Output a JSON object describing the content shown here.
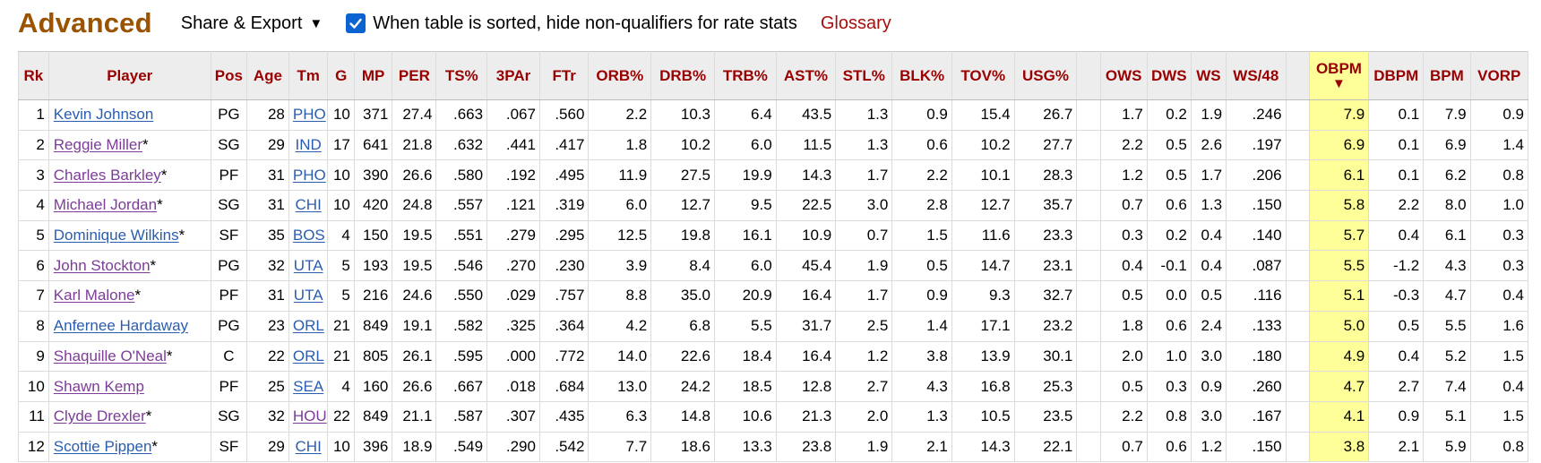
{
  "header": {
    "title": "Advanced",
    "share_export_label": "Share & Export",
    "hide_nonqualifiers_label": "When table is sorted, hide non-qualifiers for rate stats",
    "hide_nonqualifiers_checked": true,
    "glossary_label": "Glossary"
  },
  "colors": {
    "title": "#9a5300",
    "header_text": "#990000",
    "link": "#2a5db0",
    "visited_link": "#7d3c98",
    "sorted_highlight": "#ffff99",
    "checkbox": "#0a63d1"
  },
  "table": {
    "sorted_column": "OBPM",
    "sort_indicator": "▼",
    "columns": [
      "Rk",
      "Player",
      "Pos",
      "Age",
      "Tm",
      "G",
      "MP",
      "PER",
      "TS%",
      "3PAr",
      "FTr",
      "ORB%",
      "DRB%",
      "TRB%",
      "AST%",
      "STL%",
      "BLK%",
      "TOV%",
      "USG%",
      "",
      "OWS",
      "DWS",
      "WS",
      "WS/48",
      "",
      "OBPM",
      "DBPM",
      "BPM",
      "VORP"
    ],
    "rows": [
      {
        "rk": "1",
        "player": "Kevin Johnson",
        "hof": "",
        "player_visited": false,
        "pos": "PG",
        "age": "28",
        "tm": "PHO",
        "tm_visited": false,
        "g": "10",
        "mp": "371",
        "per": "27.4",
        "ts": ".663",
        "par3": ".067",
        "ftr": ".560",
        "orb": "2.2",
        "drb": "10.3",
        "trb": "6.4",
        "ast": "43.5",
        "stl": "1.3",
        "blk": "0.9",
        "tov": "15.4",
        "usg": "26.7",
        "ows": "1.7",
        "dws": "0.2",
        "ws": "1.9",
        "ws48": ".246",
        "obpm": "7.9",
        "dbpm": "0.1",
        "bpm": "7.9",
        "vorp": "0.9"
      },
      {
        "rk": "2",
        "player": "Reggie Miller",
        "hof": "*",
        "player_visited": true,
        "pos": "SG",
        "age": "29",
        "tm": "IND",
        "tm_visited": false,
        "g": "17",
        "mp": "641",
        "per": "21.8",
        "ts": ".632",
        "par3": ".441",
        "ftr": ".417",
        "orb": "1.8",
        "drb": "10.2",
        "trb": "6.0",
        "ast": "11.5",
        "stl": "1.3",
        "blk": "0.6",
        "tov": "10.2",
        "usg": "27.7",
        "ows": "2.2",
        "dws": "0.5",
        "ws": "2.6",
        "ws48": ".197",
        "obpm": "6.9",
        "dbpm": "0.1",
        "bpm": "6.9",
        "vorp": "1.4"
      },
      {
        "rk": "3",
        "player": "Charles Barkley",
        "hof": "*",
        "player_visited": true,
        "pos": "PF",
        "age": "31",
        "tm": "PHO",
        "tm_visited": false,
        "g": "10",
        "mp": "390",
        "per": "26.6",
        "ts": ".580",
        "par3": ".192",
        "ftr": ".495",
        "orb": "11.9",
        "drb": "27.5",
        "trb": "19.9",
        "ast": "14.3",
        "stl": "1.7",
        "blk": "2.2",
        "tov": "10.1",
        "usg": "28.3",
        "ows": "1.2",
        "dws": "0.5",
        "ws": "1.7",
        "ws48": ".206",
        "obpm": "6.1",
        "dbpm": "0.1",
        "bpm": "6.2",
        "vorp": "0.8"
      },
      {
        "rk": "4",
        "player": "Michael Jordan",
        "hof": "*",
        "player_visited": true,
        "pos": "SG",
        "age": "31",
        "tm": "CHI",
        "tm_visited": false,
        "g": "10",
        "mp": "420",
        "per": "24.8",
        "ts": ".557",
        "par3": ".121",
        "ftr": ".319",
        "orb": "6.0",
        "drb": "12.7",
        "trb": "9.5",
        "ast": "22.5",
        "stl": "3.0",
        "blk": "2.8",
        "tov": "12.7",
        "usg": "35.7",
        "ows": "0.7",
        "dws": "0.6",
        "ws": "1.3",
        "ws48": ".150",
        "obpm": "5.8",
        "dbpm": "2.2",
        "bpm": "8.0",
        "vorp": "1.0"
      },
      {
        "rk": "5",
        "player": "Dominique Wilkins",
        "hof": "*",
        "player_visited": false,
        "pos": "SF",
        "age": "35",
        "tm": "BOS",
        "tm_visited": false,
        "g": "4",
        "mp": "150",
        "per": "19.5",
        "ts": ".551",
        "par3": ".279",
        "ftr": ".295",
        "orb": "12.5",
        "drb": "19.8",
        "trb": "16.1",
        "ast": "10.9",
        "stl": "0.7",
        "blk": "1.5",
        "tov": "11.6",
        "usg": "23.3",
        "ows": "0.3",
        "dws": "0.2",
        "ws": "0.4",
        "ws48": ".140",
        "obpm": "5.7",
        "dbpm": "0.4",
        "bpm": "6.1",
        "vorp": "0.3"
      },
      {
        "rk": "6",
        "player": "John Stockton",
        "hof": "*",
        "player_visited": true,
        "pos": "PG",
        "age": "32",
        "tm": "UTA",
        "tm_visited": false,
        "g": "5",
        "mp": "193",
        "per": "19.5",
        "ts": ".546",
        "par3": ".270",
        "ftr": ".230",
        "orb": "3.9",
        "drb": "8.4",
        "trb": "6.0",
        "ast": "45.4",
        "stl": "1.9",
        "blk": "0.5",
        "tov": "14.7",
        "usg": "23.1",
        "ows": "0.4",
        "dws": "-0.1",
        "ws": "0.4",
        "ws48": ".087",
        "obpm": "5.5",
        "dbpm": "-1.2",
        "bpm": "4.3",
        "vorp": "0.3"
      },
      {
        "rk": "7",
        "player": "Karl Malone",
        "hof": "*",
        "player_visited": true,
        "pos": "PF",
        "age": "31",
        "tm": "UTA",
        "tm_visited": false,
        "g": "5",
        "mp": "216",
        "per": "24.6",
        "ts": ".550",
        "par3": ".029",
        "ftr": ".757",
        "orb": "8.8",
        "drb": "35.0",
        "trb": "20.9",
        "ast": "16.4",
        "stl": "1.7",
        "blk": "0.9",
        "tov": "9.3",
        "usg": "32.7",
        "ows": "0.5",
        "dws": "0.0",
        "ws": "0.5",
        "ws48": ".116",
        "obpm": "5.1",
        "dbpm": "-0.3",
        "bpm": "4.7",
        "vorp": "0.4"
      },
      {
        "rk": "8",
        "player": "Anfernee Hardaway",
        "hof": "",
        "player_visited": false,
        "pos": "PG",
        "age": "23",
        "tm": "ORL",
        "tm_visited": false,
        "g": "21",
        "mp": "849",
        "per": "19.1",
        "ts": ".582",
        "par3": ".325",
        "ftr": ".364",
        "orb": "4.2",
        "drb": "6.8",
        "trb": "5.5",
        "ast": "31.7",
        "stl": "2.5",
        "blk": "1.4",
        "tov": "17.1",
        "usg": "23.2",
        "ows": "1.8",
        "dws": "0.6",
        "ws": "2.4",
        "ws48": ".133",
        "obpm": "5.0",
        "dbpm": "0.5",
        "bpm": "5.5",
        "vorp": "1.6"
      },
      {
        "rk": "9",
        "player": "Shaquille O'Neal",
        "hof": "*",
        "player_visited": true,
        "pos": "C",
        "age": "22",
        "tm": "ORL",
        "tm_visited": false,
        "g": "21",
        "mp": "805",
        "per": "26.1",
        "ts": ".595",
        "par3": ".000",
        "ftr": ".772",
        "orb": "14.0",
        "drb": "22.6",
        "trb": "18.4",
        "ast": "16.4",
        "stl": "1.2",
        "blk": "3.8",
        "tov": "13.9",
        "usg": "30.1",
        "ows": "2.0",
        "dws": "1.0",
        "ws": "3.0",
        "ws48": ".180",
        "obpm": "4.9",
        "dbpm": "0.4",
        "bpm": "5.2",
        "vorp": "1.5"
      },
      {
        "rk": "10",
        "player": "Shawn Kemp",
        "hof": "",
        "player_visited": true,
        "pos": "PF",
        "age": "25",
        "tm": "SEA",
        "tm_visited": false,
        "g": "4",
        "mp": "160",
        "per": "26.6",
        "ts": ".667",
        "par3": ".018",
        "ftr": ".684",
        "orb": "13.0",
        "drb": "24.2",
        "trb": "18.5",
        "ast": "12.8",
        "stl": "2.7",
        "blk": "4.3",
        "tov": "16.8",
        "usg": "25.3",
        "ows": "0.5",
        "dws": "0.3",
        "ws": "0.9",
        "ws48": ".260",
        "obpm": "4.7",
        "dbpm": "2.7",
        "bpm": "7.4",
        "vorp": "0.4"
      },
      {
        "rk": "11",
        "player": "Clyde Drexler",
        "hof": "*",
        "player_visited": true,
        "pos": "SG",
        "age": "32",
        "tm": "HOU",
        "tm_visited": true,
        "g": "22",
        "mp": "849",
        "per": "21.1",
        "ts": ".587",
        "par3": ".307",
        "ftr": ".435",
        "orb": "6.3",
        "drb": "14.8",
        "trb": "10.6",
        "ast": "21.3",
        "stl": "2.0",
        "blk": "1.3",
        "tov": "10.5",
        "usg": "23.5",
        "ows": "2.2",
        "dws": "0.8",
        "ws": "3.0",
        "ws48": ".167",
        "obpm": "4.1",
        "dbpm": "0.9",
        "bpm": "5.1",
        "vorp": "1.5"
      },
      {
        "rk": "12",
        "player": "Scottie Pippen",
        "hof": "*",
        "player_visited": false,
        "pos": "SF",
        "age": "29",
        "tm": "CHI",
        "tm_visited": false,
        "g": "10",
        "mp": "396",
        "per": "18.9",
        "ts": ".549",
        "par3": ".290",
        "ftr": ".542",
        "orb": "7.7",
        "drb": "18.6",
        "trb": "13.3",
        "ast": "23.8",
        "stl": "1.9",
        "blk": "2.1",
        "tov": "14.3",
        "usg": "22.1",
        "ows": "0.7",
        "dws": "0.6",
        "ws": "1.2",
        "ws48": ".150",
        "obpm": "3.8",
        "dbpm": "2.1",
        "bpm": "5.9",
        "vorp": "0.8"
      }
    ]
  }
}
